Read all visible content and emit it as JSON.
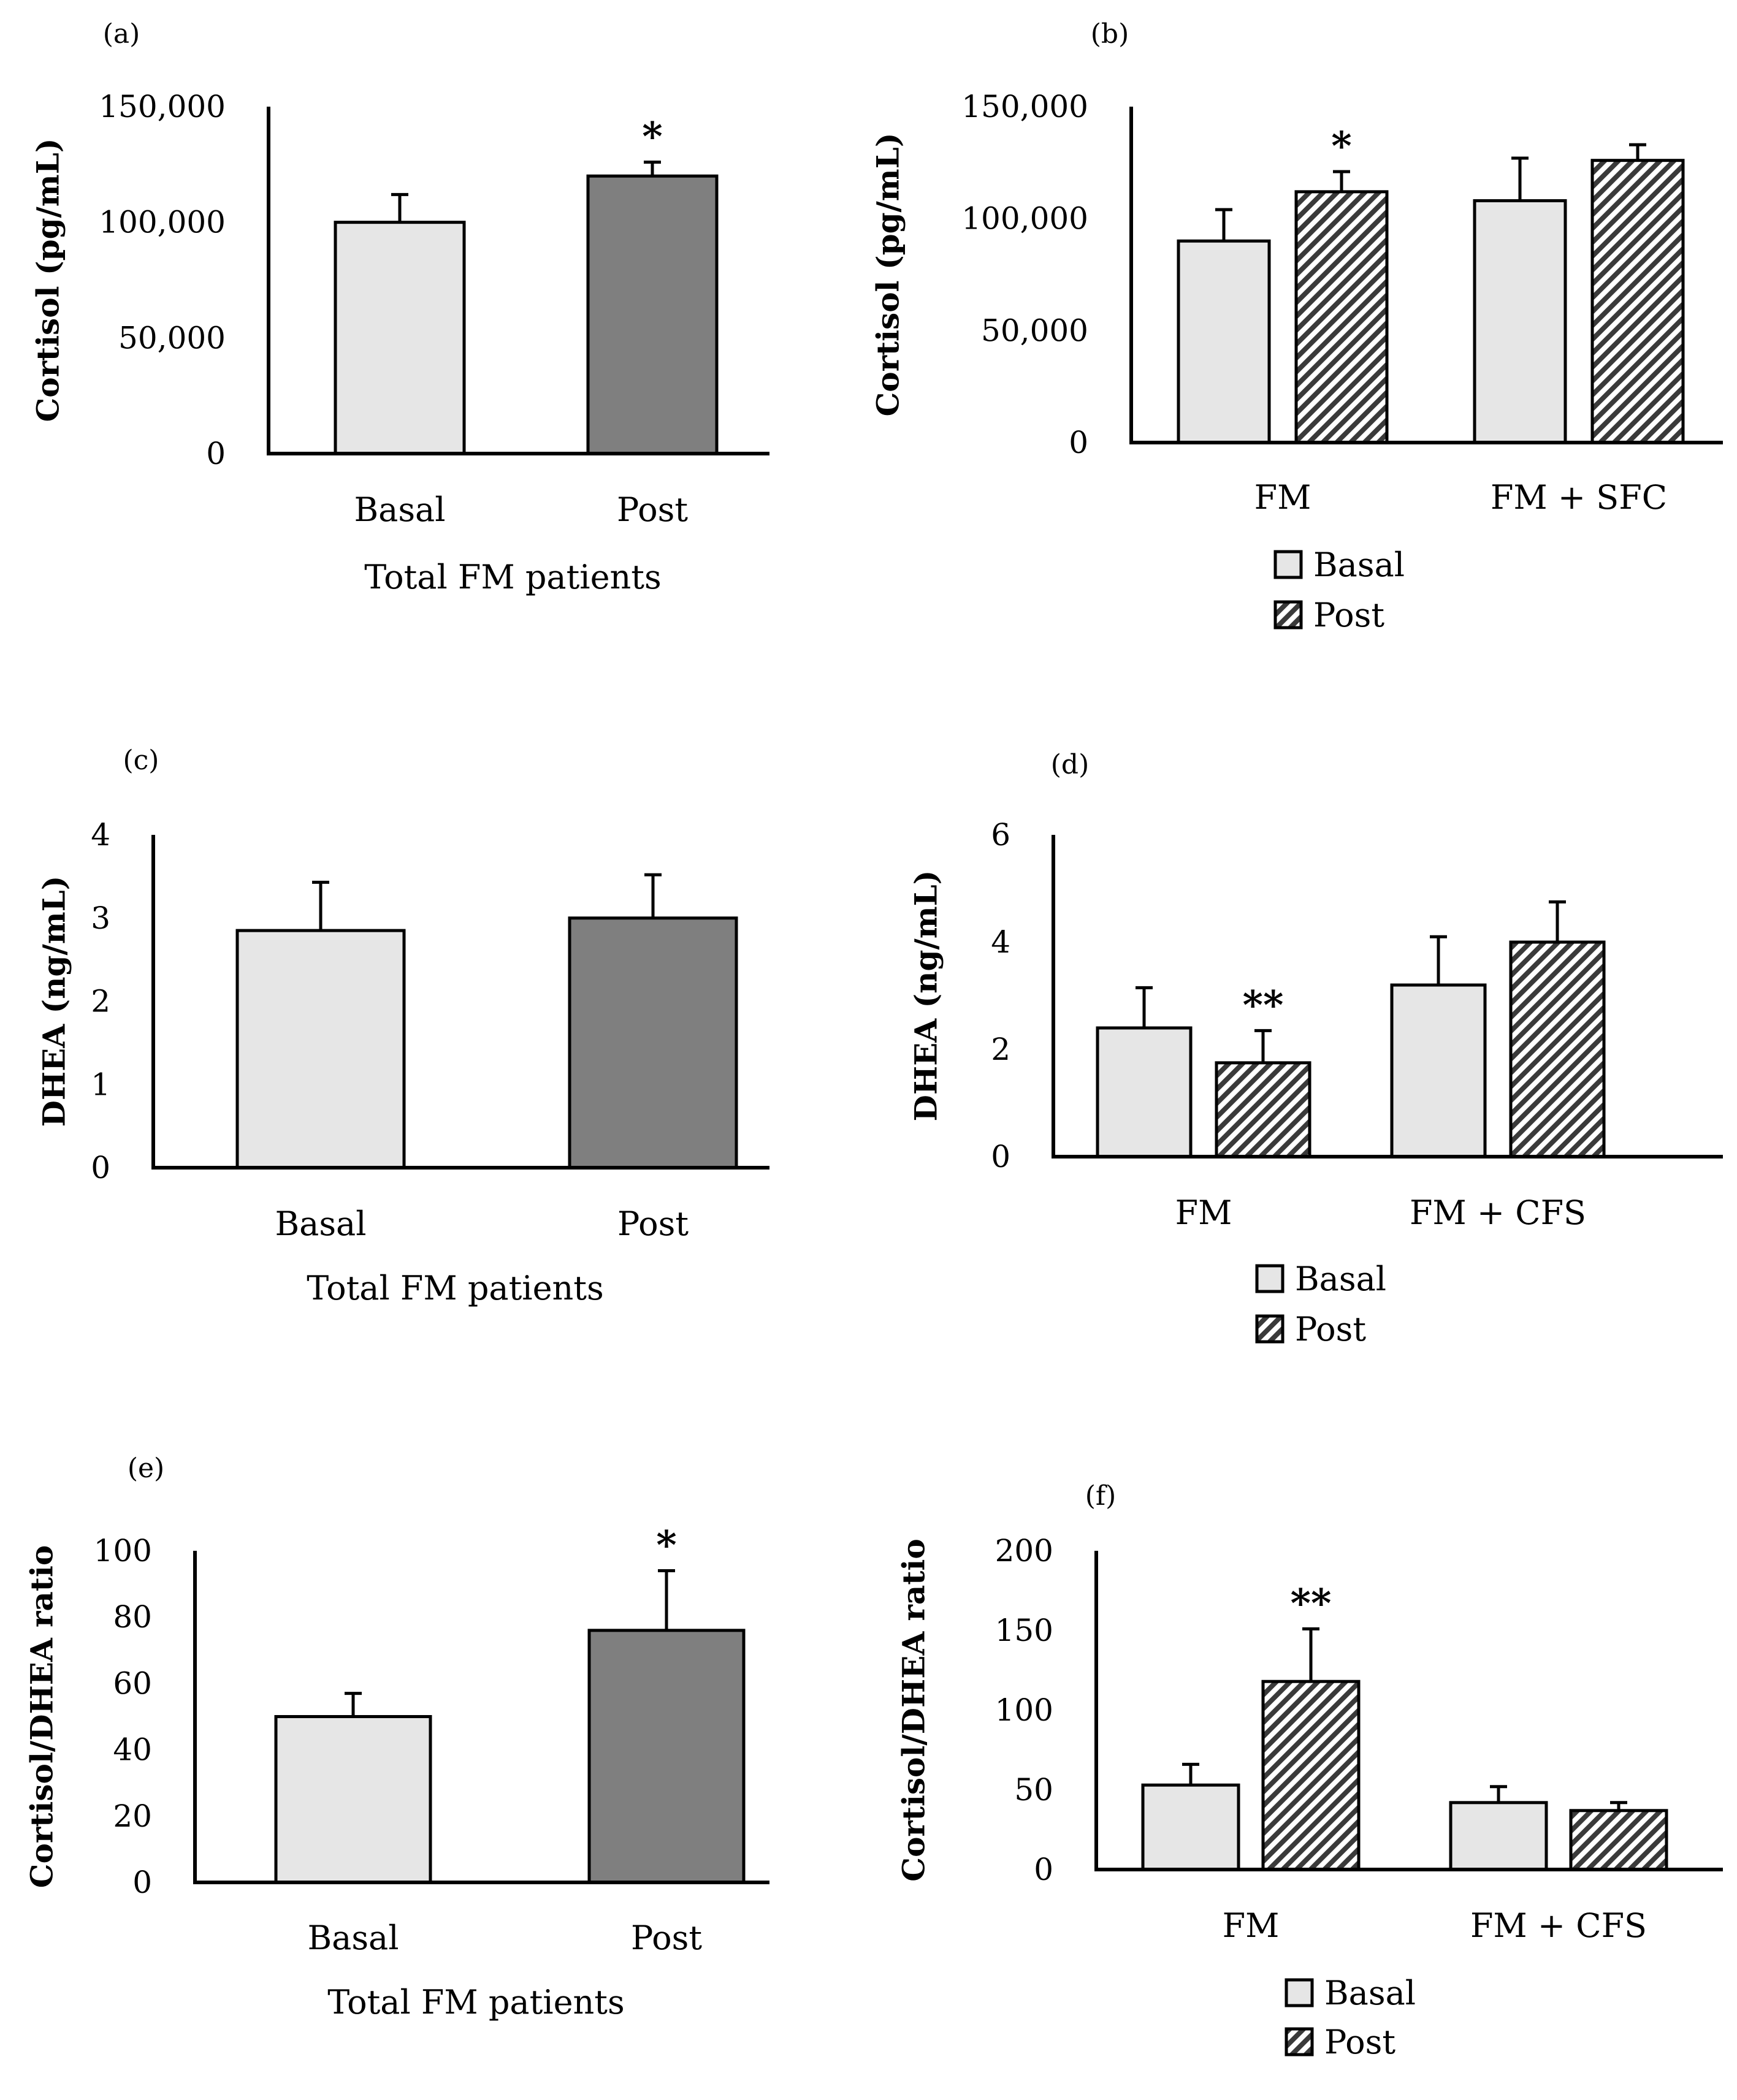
{
  "colors": {
    "basal": "#e6e6e6",
    "post_solid": "#7f7f7f",
    "post_hatch": "#3a3a3a",
    "edge": "#000000"
  },
  "chart_data": [
    {
      "id": "a",
      "panel_label": "(a)",
      "type": "bar",
      "ylabel": "Cortisol (pg/mL)",
      "xlabel": "Total FM patients",
      "ylim": [
        0,
        150000
      ],
      "yticks": [
        0,
        50000,
        100000,
        150000
      ],
      "ytick_labels": [
        "0",
        "50,000",
        "100,000",
        "150,000"
      ],
      "categories": [
        "Basal",
        "Post"
      ],
      "bars": [
        {
          "category": "Basal",
          "value": 100000,
          "error": 12000,
          "fill": "basal",
          "sig": ""
        },
        {
          "category": "Post",
          "value": 120000,
          "error": 6000,
          "fill": "post_solid",
          "sig": "*"
        }
      ]
    },
    {
      "id": "b",
      "panel_label": "(b)",
      "type": "bar",
      "ylabel": "Cortisol (pg/mL)",
      "xlabel": "",
      "ylim": [
        0,
        150000
      ],
      "yticks": [
        0,
        50000,
        100000,
        150000
      ],
      "ytick_labels": [
        "0",
        "50,000",
        "100,000",
        "150,000"
      ],
      "categories": [
        "FM",
        "FM + SFC"
      ],
      "legend": [
        "Basal",
        "Post"
      ],
      "series": [
        {
          "name": "Basal",
          "values": [
            90000,
            108000
          ],
          "errors": [
            14000,
            19000
          ],
          "fill": "basal",
          "sig": [
            "",
            ""
          ]
        },
        {
          "name": "Post",
          "values": [
            112000,
            126000
          ],
          "errors": [
            9000,
            7000
          ],
          "fill": "post_hatch",
          "sig": [
            "*",
            ""
          ]
        }
      ]
    },
    {
      "id": "c",
      "panel_label": "(c)",
      "type": "bar",
      "ylabel": "DHEA (ng/mL)",
      "xlabel": "Total FM patients",
      "ylim": [
        0,
        4
      ],
      "yticks": [
        0,
        1,
        2,
        3,
        4
      ],
      "ytick_labels": [
        "0",
        "1",
        "2",
        "3",
        "4"
      ],
      "categories": [
        "Basal",
        "Post"
      ],
      "bars": [
        {
          "category": "Basal",
          "value": 2.85,
          "error": 0.58,
          "fill": "basal",
          "sig": ""
        },
        {
          "category": "Post",
          "value": 3.0,
          "error": 0.52,
          "fill": "post_solid",
          "sig": ""
        }
      ]
    },
    {
      "id": "d",
      "panel_label": "(d)",
      "type": "bar",
      "ylabel": "DHEA (ng/mL)",
      "xlabel": "",
      "ylim": [
        0,
        6
      ],
      "yticks": [
        0,
        2,
        4,
        6
      ],
      "ytick_labels": [
        "0",
        "2",
        "4",
        "6"
      ],
      "categories": [
        "FM",
        "FM + CFS"
      ],
      "legend": [
        "Basal",
        "Post"
      ],
      "series": [
        {
          "name": "Basal",
          "values": [
            2.4,
            3.2
          ],
          "errors": [
            0.75,
            0.9
          ],
          "fill": "basal",
          "sig": [
            "",
            ""
          ]
        },
        {
          "name": "Post",
          "values": [
            1.75,
            4.0
          ],
          "errors": [
            0.6,
            0.75
          ],
          "fill": "post_hatch",
          "sig": [
            "**",
            ""
          ]
        }
      ]
    },
    {
      "id": "e",
      "panel_label": "(e)",
      "type": "bar",
      "ylabel": "Cortisol/DHEA ratio",
      "xlabel": "Total FM patients",
      "ylim": [
        0,
        100
      ],
      "yticks": [
        0,
        20,
        40,
        60,
        80,
        100
      ],
      "ytick_labels": [
        "0",
        "20",
        "40",
        "60",
        "80",
        "100"
      ],
      "categories": [
        "Basal",
        "Post"
      ],
      "bars": [
        {
          "category": "Basal",
          "value": 50,
          "error": 7,
          "fill": "basal",
          "sig": ""
        },
        {
          "category": "Post",
          "value": 76,
          "error": 18,
          "fill": "post_solid",
          "sig": "*"
        }
      ]
    },
    {
      "id": "f",
      "panel_label": "(f)",
      "type": "bar",
      "ylabel": "Cortisol/DHEA ratio",
      "xlabel": "",
      "ylim": [
        0,
        200
      ],
      "yticks": [
        0,
        50,
        100,
        150,
        200
      ],
      "ytick_labels": [
        "0",
        "50",
        "100",
        "150",
        "200"
      ],
      "categories": [
        "FM",
        "FM + CFS"
      ],
      "legend": [
        "Basal",
        "Post"
      ],
      "series": [
        {
          "name": "Basal",
          "values": [
            53,
            42
          ],
          "errors": [
            13,
            10
          ],
          "fill": "basal",
          "sig": [
            "",
            ""
          ]
        },
        {
          "name": "Post",
          "values": [
            118,
            37
          ],
          "errors": [
            33,
            5
          ],
          "fill": "post_hatch",
          "sig": [
            "**",
            ""
          ]
        }
      ]
    }
  ]
}
